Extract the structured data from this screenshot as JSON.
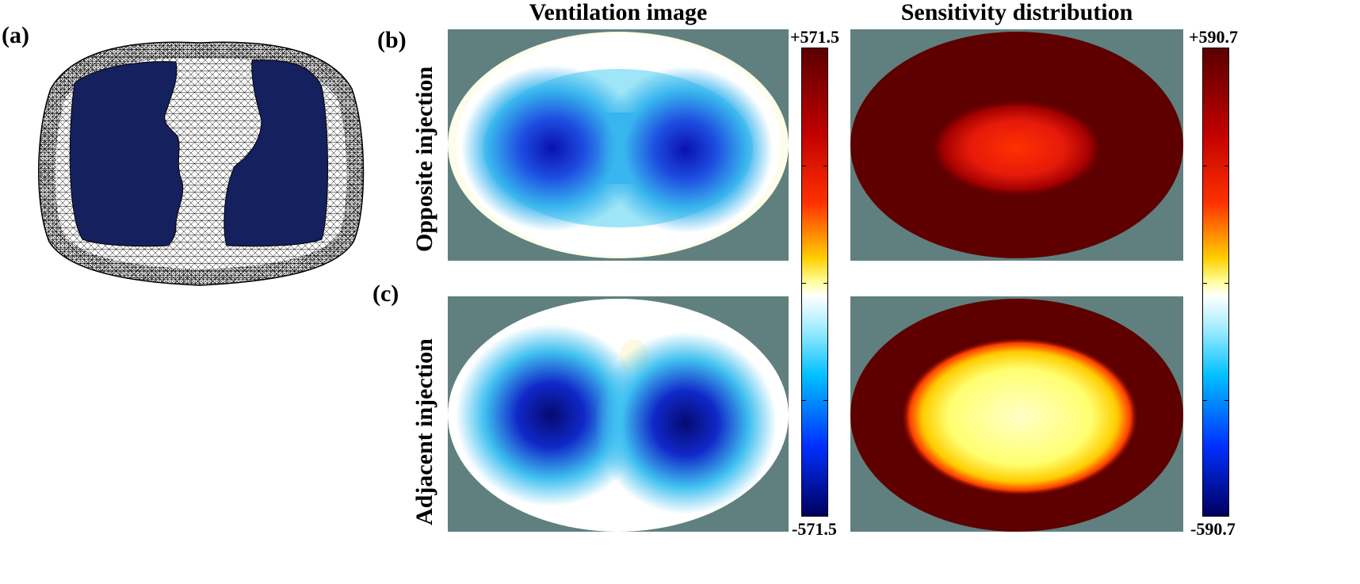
{
  "panel_labels": {
    "a": "(a)",
    "b": "(b)",
    "c": "(c)"
  },
  "column_titles": {
    "ventilation": "Ventilation image",
    "sensitivity": "Sensitivity distribution"
  },
  "row_titles": {
    "opposite": "Opposite injection",
    "adjacent": "Adjacent injection"
  },
  "colorbars": {
    "ventilation": {
      "max_label": "+571.5",
      "min_label": "-571.5",
      "max": 571.5,
      "min": -571.5
    },
    "sensitivity": {
      "max_label": "+590.7",
      "min_label": "-590.7",
      "max": 590.7,
      "min": -590.7
    }
  },
  "colors": {
    "panel_background": "#5f807f",
    "lung_fill": "#15205e",
    "sensitivity_outer": "#5e0000",
    "ventilation_core": "#0a1fc8"
  }
}
